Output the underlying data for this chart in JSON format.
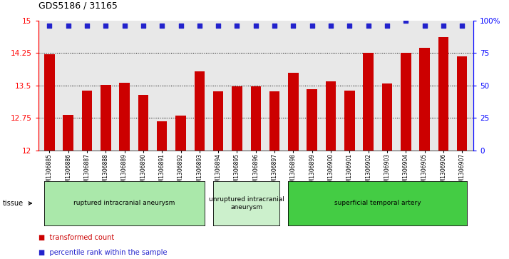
{
  "title": "GDS5186 / 31165",
  "samples": [
    "GSM1306885",
    "GSM1306886",
    "GSM1306887",
    "GSM1306888",
    "GSM1306889",
    "GSM1306890",
    "GSM1306891",
    "GSM1306892",
    "GSM1306893",
    "GSM1306894",
    "GSM1306895",
    "GSM1306896",
    "GSM1306897",
    "GSM1306898",
    "GSM1306899",
    "GSM1306900",
    "GSM1306901",
    "GSM1306902",
    "GSM1306903",
    "GSM1306904",
    "GSM1306905",
    "GSM1306906",
    "GSM1306907"
  ],
  "bar_values": [
    14.22,
    12.82,
    13.38,
    13.52,
    13.57,
    13.28,
    12.67,
    12.8,
    13.82,
    13.37,
    13.48,
    13.48,
    13.36,
    13.8,
    13.42,
    13.6,
    13.38,
    14.26,
    13.54,
    14.26,
    14.37,
    14.62,
    14.18
  ],
  "percentile_values": [
    96,
    96,
    96,
    96,
    96,
    96,
    96,
    96,
    96,
    96,
    96,
    96,
    96,
    96,
    96,
    96,
    96,
    96,
    96,
    100,
    96,
    96,
    96
  ],
  "groups": [
    {
      "label": "ruptured intracranial aneurysm",
      "start": 0,
      "end": 9,
      "color": "#aae8aa"
    },
    {
      "label": "unruptured intracranial\naneurysm",
      "start": 9,
      "end": 13,
      "color": "#ccf0cc"
    },
    {
      "label": "superficial temporal artery",
      "start": 13,
      "end": 23,
      "color": "#44cc44"
    }
  ],
  "ylim": [
    12,
    15
  ],
  "yticks": [
    12,
    12.75,
    13.5,
    14.25,
    15
  ],
  "ytick_labels": [
    "12",
    "12.75",
    "13.5",
    "14.25",
    "15"
  ],
  "right_yticks": [
    0,
    25,
    50,
    75,
    100
  ],
  "right_ytick_labels": [
    "0",
    "25",
    "50",
    "75",
    "100%"
  ],
  "bar_color": "#cc0000",
  "dot_color": "#2222cc",
  "bg_color": "#e8e8e8",
  "tissue_label": "tissue",
  "legend_items": [
    {
      "color": "#cc0000",
      "label": "transformed count"
    },
    {
      "color": "#2222cc",
      "label": "percentile rank within the sample"
    }
  ]
}
